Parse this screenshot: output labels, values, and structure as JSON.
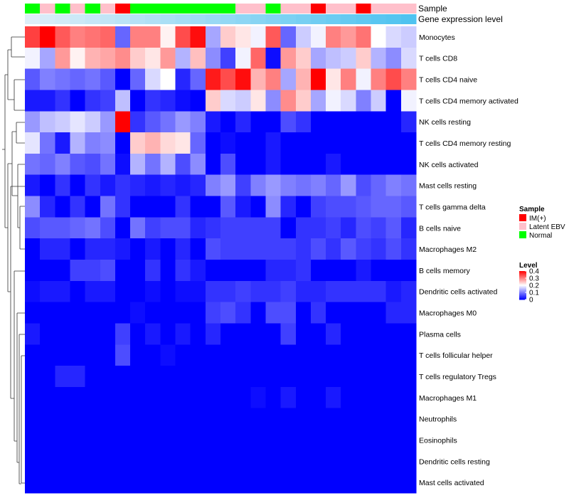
{
  "chart_data": {
    "type": "heatmap",
    "annotation_rows": [
      "Sample",
      "Gene expression level"
    ],
    "samples": [
      "Normal",
      "Latent EBV",
      "Normal",
      "Latent EBV",
      "Normal",
      "Latent EBV",
      "IM(+)",
      "Normal",
      "Normal",
      "Normal",
      "Normal",
      "Normal",
      "Normal",
      "Normal",
      "Latent EBV",
      "Latent EBV",
      "Normal",
      "Latent EBV",
      "Latent EBV",
      "IM(+)",
      "Latent EBV",
      "Latent EBV",
      "IM(+)",
      "Latent EBV",
      "Latent EBV",
      "Latent EBV"
    ],
    "gene_expression_level": [
      0.1,
      0.13,
      0.16,
      0.19,
      0.22,
      0.25,
      0.28,
      0.31,
      0.34,
      0.37,
      0.4,
      0.43,
      0.46,
      0.49,
      0.52,
      0.55,
      0.58,
      0.61,
      0.64,
      0.67,
      0.7,
      0.73,
      0.76,
      0.79,
      0.82,
      0.85
    ],
    "rows": [
      "Monocytes",
      "T cells CD8",
      "T cells CD4 naive",
      "T cells CD4 memory activated",
      "NK cells resting",
      "T cells CD4 memory resting",
      "NK cells activated",
      "Mast cells resting",
      "T cells gamma delta",
      "B cells naive",
      "Macrophages M2",
      "B cells memory",
      "Dendritic cells activated",
      "Macrophages M0",
      "Plasma cells",
      "T cells follicular helper",
      "T cells regulatory  Tregs",
      "Macrophages M1",
      "Neutrophils",
      "Eosinophils",
      "Dendritic cells resting",
      "Mast cells activated"
    ],
    "values": [
      [
        0.35,
        0.4,
        0.33,
        0.3,
        0.31,
        0.32,
        0.08,
        0.3,
        0.3,
        0.21,
        0.34,
        0.39,
        0.13,
        0.24,
        0.22,
        0.19,
        0.33,
        0.08,
        0.16,
        0.19,
        0.3,
        0.28,
        0.31,
        0.2,
        0.17,
        0.16
      ],
      [
        0.19,
        0.13,
        0.28,
        0.21,
        0.26,
        0.27,
        0.29,
        0.24,
        0.22,
        0.28,
        0.14,
        0.25,
        0.11,
        0.05,
        0.19,
        0.32,
        0.01,
        0.28,
        0.24,
        0.13,
        0.15,
        0.16,
        0.24,
        0.14,
        0.11,
        0.17
      ],
      [
        0.07,
        0.1,
        0.09,
        0.08,
        0.09,
        0.07,
        0.0,
        0.08,
        0.17,
        0.2,
        0.03,
        0.08,
        0.38,
        0.34,
        0.39,
        0.26,
        0.3,
        0.13,
        0.26,
        0.4,
        0.22,
        0.3,
        0.19,
        0.3,
        0.34,
        0.3
      ],
      [
        0.02,
        0.02,
        0.04,
        0.0,
        0.04,
        0.05,
        0.15,
        0.0,
        0.04,
        0.03,
        0.01,
        0.0,
        0.24,
        0.17,
        0.16,
        0.22,
        0.11,
        0.29,
        0.24,
        0.13,
        0.19,
        0.17,
        0.1,
        0.16,
        0.0,
        0.19
      ],
      [
        0.12,
        0.15,
        0.16,
        0.18,
        0.16,
        0.12,
        0.4,
        0.04,
        0.07,
        0.09,
        0.12,
        0.1,
        0.02,
        0.0,
        0.03,
        0.0,
        0.0,
        0.06,
        0.04,
        0.0,
        0.0,
        0.0,
        0.0,
        0.0,
        0.0,
        0.03
      ],
      [
        0.18,
        0.09,
        0.02,
        0.14,
        0.1,
        0.11,
        0.0,
        0.24,
        0.26,
        0.23,
        0.22,
        0.08,
        0.0,
        0.01,
        0.0,
        0.0,
        0.02,
        0.0,
        0.0,
        0.0,
        0.0,
        0.0,
        0.0,
        0.0,
        0.0,
        0.0
      ],
      [
        0.09,
        0.08,
        0.1,
        0.07,
        0.06,
        0.09,
        0.01,
        0.14,
        0.09,
        0.14,
        0.06,
        0.11,
        0.0,
        0.06,
        0.0,
        0.0,
        0.02,
        0.0,
        0.0,
        0.0,
        0.02,
        0.0,
        0.0,
        0.0,
        0.0,
        0.0
      ],
      [
        0.02,
        0.0,
        0.04,
        0.0,
        0.04,
        0.02,
        0.04,
        0.03,
        0.02,
        0.03,
        0.02,
        0.03,
        0.1,
        0.12,
        0.05,
        0.1,
        0.12,
        0.1,
        0.09,
        0.1,
        0.08,
        0.12,
        0.06,
        0.08,
        0.1,
        0.09
      ],
      [
        0.11,
        0.03,
        0.0,
        0.04,
        0.0,
        0.09,
        0.04,
        0.0,
        0.0,
        0.0,
        0.04,
        0.0,
        0.0,
        0.07,
        0.02,
        0.0,
        0.11,
        0.03,
        0.0,
        0.05,
        0.06,
        0.06,
        0.07,
        0.08,
        0.08,
        0.07
      ],
      [
        0.06,
        0.07,
        0.07,
        0.08,
        0.09,
        0.06,
        0.0,
        0.09,
        0.05,
        0.06,
        0.06,
        0.03,
        0.04,
        0.05,
        0.05,
        0.05,
        0.05,
        0.0,
        0.04,
        0.04,
        0.05,
        0.03,
        0.06,
        0.05,
        0.07,
        0.03
      ],
      [
        0.0,
        0.03,
        0.03,
        0.0,
        0.03,
        0.03,
        0.02,
        0.0,
        0.02,
        0.0,
        0.03,
        0.0,
        0.06,
        0.05,
        0.05,
        0.05,
        0.05,
        0.05,
        0.04,
        0.06,
        0.04,
        0.07,
        0.05,
        0.04,
        0.06,
        0.04
      ],
      [
        0.0,
        0.0,
        0.0,
        0.05,
        0.05,
        0.06,
        0.0,
        0.0,
        0.04,
        0.0,
        0.04,
        0.02,
        0.0,
        0.0,
        0.0,
        0.0,
        0.03,
        0.03,
        0.04,
        0.0,
        0.0,
        0.0,
        0.02,
        0.0,
        0.0,
        0.0
      ],
      [
        0.01,
        0.02,
        0.02,
        0.0,
        0.02,
        0.02,
        0.0,
        0.0,
        0.01,
        0.0,
        0.01,
        0.01,
        0.04,
        0.04,
        0.05,
        0.04,
        0.04,
        0.05,
        0.03,
        0.03,
        0.04,
        0.04,
        0.04,
        0.04,
        0.02,
        0.03
      ],
      [
        0.0,
        0.0,
        0.0,
        0.0,
        0.0,
        0.0,
        0.0,
        0.01,
        0.0,
        0.0,
        0.0,
        0.0,
        0.05,
        0.06,
        0.04,
        0.0,
        0.06,
        0.06,
        0.0,
        0.04,
        0.0,
        0.0,
        0.0,
        0.0,
        0.03,
        0.03
      ],
      [
        0.02,
        0.0,
        0.0,
        0.0,
        0.0,
        0.0,
        0.05,
        0.0,
        0.02,
        0.0,
        0.02,
        0.0,
        0.03,
        0.0,
        0.0,
        0.0,
        0.0,
        0.05,
        0.0,
        0.0,
        0.03,
        0.0,
        0.0,
        0.0,
        0.0,
        0.0
      ],
      [
        0.0,
        0.0,
        0.0,
        0.0,
        0.0,
        0.0,
        0.06,
        0.0,
        0.0,
        0.01,
        0.0,
        0.0,
        0.0,
        0.0,
        0.0,
        0.0,
        0.0,
        0.0,
        0.0,
        0.0,
        0.0,
        0.0,
        0.0,
        0.0,
        0.0,
        0.0
      ],
      [
        0.0,
        0.0,
        0.03,
        0.03,
        0.0,
        0.0,
        0.0,
        0.0,
        0.0,
        0.0,
        0.0,
        0.0,
        0.0,
        0.0,
        0.0,
        0.0,
        0.0,
        0.0,
        0.0,
        0.0,
        0.0,
        0.0,
        0.0,
        0.0,
        0.0,
        0.0
      ],
      [
        0.0,
        0.0,
        0.0,
        0.0,
        0.0,
        0.0,
        0.0,
        0.0,
        0.0,
        0.0,
        0.0,
        0.0,
        0.0,
        0.0,
        0.0,
        0.01,
        0.0,
        0.02,
        0.0,
        0.0,
        0.02,
        0.0,
        0.0,
        0.0,
        0.0,
        0.0
      ],
      [
        0.0,
        0.0,
        0.0,
        0.0,
        0.0,
        0.0,
        0.0,
        0.0,
        0.0,
        0.0,
        0.0,
        0.0,
        0.0,
        0.0,
        0.0,
        0.0,
        0.0,
        0.0,
        0.0,
        0.0,
        0.0,
        0.0,
        0.0,
        0.0,
        0.0,
        0.0
      ],
      [
        0.0,
        0.0,
        0.0,
        0.0,
        0.0,
        0.0,
        0.0,
        0.0,
        0.0,
        0.0,
        0.0,
        0.0,
        0.0,
        0.0,
        0.0,
        0.0,
        0.0,
        0.0,
        0.0,
        0.0,
        0.0,
        0.0,
        0.0,
        0.0,
        0.0,
        0.0
      ],
      [
        0.0,
        0.0,
        0.0,
        0.0,
        0.0,
        0.0,
        0.0,
        0.0,
        0.0,
        0.0,
        0.0,
        0.0,
        0.0,
        0.0,
        0.0,
        0.0,
        0.0,
        0.0,
        0.0,
        0.0,
        0.0,
        0.0,
        0.0,
        0.0,
        0.0,
        0.0
      ],
      [
        0.0,
        0.0,
        0.0,
        0.0,
        0.0,
        0.0,
        0.0,
        0.0,
        0.0,
        0.0,
        0.0,
        0.0,
        0.0,
        0.0,
        0.0,
        0.0,
        0.0,
        0.0,
        0.0,
        0.0,
        0.0,
        0.0,
        0.0,
        0.0,
        0.0,
        0.0
      ]
    ],
    "value_range": [
      0,
      0.4
    ],
    "colors": {
      "low": "#0000FF",
      "mid": "#FFFFFF",
      "high": "#FF0000",
      "mid_value": 0.2
    },
    "sample_colors": {
      "IM(+)": "#FF0000",
      "Latent EBV": "#FFC0CB",
      "Normal": "#00FF00"
    },
    "gene_expression_colors": {
      "low": "#DDEEF8",
      "high": "#4FC3F0"
    },
    "legend": {
      "sample_title": "Sample",
      "sample_entries": [
        "IM(+)",
        "Latent EBV",
        "Normal"
      ],
      "level_title": "Level",
      "level_ticks": [
        "0.4",
        "0.3",
        "0.2",
        "0.1",
        "0"
      ],
      "level_tick_values": [
        0.4,
        0.3,
        0.2,
        0.1,
        0
      ]
    }
  }
}
